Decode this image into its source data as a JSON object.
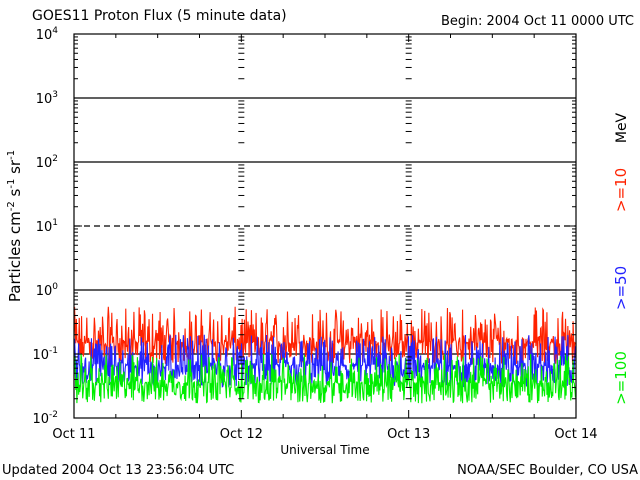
{
  "header": {
    "title": "GOES11 Proton Flux (5 minute data)",
    "begin": "Begin: 2004 Oct 11 0000 UTC"
  },
  "footer": {
    "updated": "Updated 2004 Oct 13 23:56:04 UTC",
    "source": "NOAA/SEC Boulder, CO USA"
  },
  "legend": {
    "unit": "MeV",
    "items": [
      {
        "label": ">=10",
        "color": "#ff2200"
      },
      {
        "label": ">=50",
        "color": "#2222ff"
      },
      {
        "label": ">=100",
        "color": "#00ee00"
      }
    ]
  },
  "chart_data": {
    "type": "line",
    "title": "GOES11 Proton Flux (5 minute data)",
    "xlabel": "Universal Time",
    "ylabel_parts": [
      "Particles cm",
      "-2",
      "s",
      "-1",
      "sr",
      "-1"
    ],
    "yscale": "log",
    "ylim": [
      0.01,
      10000
    ],
    "xlim_days": [
      0,
      3
    ],
    "x_ticks": [
      {
        "day": 0,
        "label": "Oct 11"
      },
      {
        "day": 1,
        "label": "Oct 12"
      },
      {
        "day": 2,
        "label": "Oct 13"
      },
      {
        "day": 3,
        "label": "Oct 14"
      }
    ],
    "y_ticks": [
      {
        "value": 0.01,
        "base": "10",
        "exp": "-2"
      },
      {
        "value": 0.1,
        "base": "10",
        "exp": "-1"
      },
      {
        "value": 1,
        "base": "10",
        "exp": "0"
      },
      {
        "value": 10,
        "base": "10",
        "exp": "1"
      },
      {
        "value": 100,
        "base": "10",
        "exp": "2"
      },
      {
        "value": 1000,
        "base": "10",
        "exp": "3"
      },
      {
        "value": 10000,
        "base": "10",
        "exp": "4"
      }
    ],
    "threshold_lines": [
      {
        "value": 10,
        "style": "dashed"
      },
      {
        "value": 1,
        "style": "solid"
      },
      {
        "value": 0.1,
        "style": "solid"
      },
      {
        "value": 100,
        "style": "solid"
      },
      {
        "value": 1000,
        "style": "solid"
      }
    ],
    "series": [
      {
        "name": ">=10 MeV",
        "color": "#ff2200",
        "baseline": 0.15,
        "low": 0.07,
        "high": 0.55,
        "samples": 864
      },
      {
        "name": ">=50 MeV",
        "color": "#2222ff",
        "baseline": 0.065,
        "low": 0.03,
        "high": 0.2,
        "samples": 864
      },
      {
        "name": ">=100 MeV",
        "color": "#00ee00",
        "baseline": 0.035,
        "low": 0.017,
        "high": 0.1,
        "samples": 864
      }
    ]
  }
}
